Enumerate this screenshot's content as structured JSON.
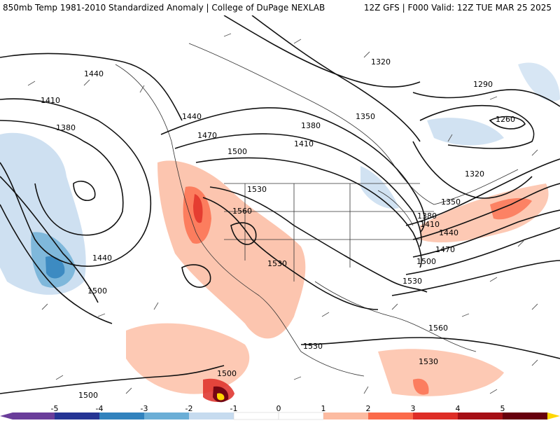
{
  "header": {
    "title_left": "850mb Temp 1981-2010 Standardized Anomaly | College of DuPage NEXLAB",
    "title_right": "12Z GFS | F000 Valid: 12Z TUE MAR 25 2025"
  },
  "map": {
    "contour_labels": [
      "1440",
      "1410",
      "1380",
      "1440",
      "1470",
      "1500",
      "1530",
      "1560",
      "1530",
      "1440",
      "1500",
      "1530",
      "1500",
      "1500",
      "1320",
      "1350",
      "1380",
      "1410",
      "1290",
      "1260",
      "1320",
      "1350",
      "1380",
      "1410",
      "1440",
      "1470",
      "1500",
      "1530",
      "1560",
      "1530"
    ],
    "anomaly_colors": {
      "neg5": "#6a3d9a",
      "neg4": "#253494",
      "neg3": "#3182bd",
      "neg2": "#6baed6",
      "neg1": "#c6dbef",
      "pos1": "#fcbba1",
      "pos2": "#fb6a4a",
      "pos3": "#de2d26",
      "pos4": "#a50f15",
      "pos5": "#67000d",
      "pos6": "#ffd700"
    }
  },
  "colorbar": {
    "ticks": [
      "-5",
      "-4",
      "-3",
      "-2",
      "-1",
      "0",
      "1",
      "2",
      "3",
      "4",
      "5"
    ]
  }
}
